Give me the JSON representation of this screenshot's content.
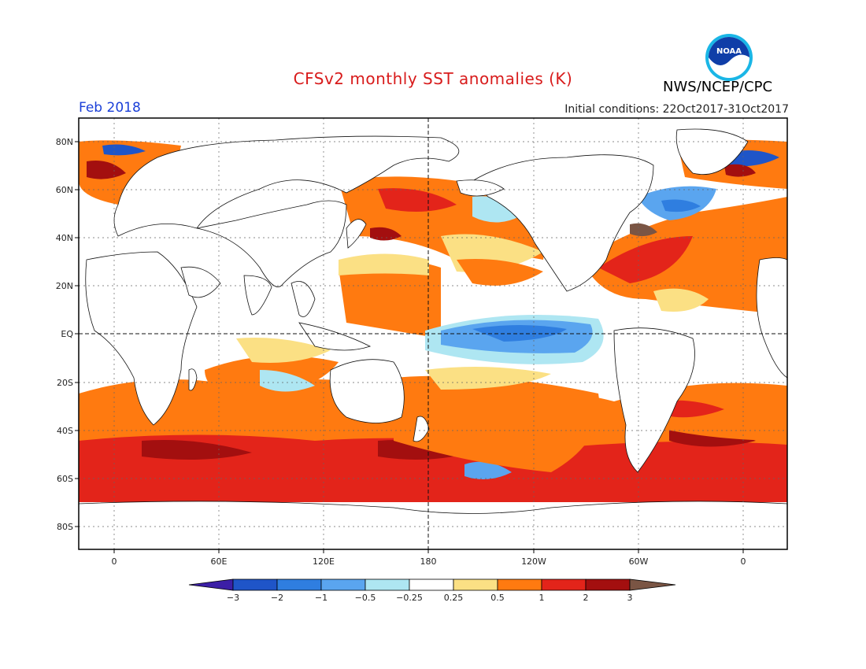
{
  "header": {
    "title": "CFSv2 monthly SST anomalies (K)",
    "organization": "NWS/NCEP/CPC",
    "logo_text": "NOAA",
    "month": "Feb 2018",
    "initial_conditions": "Initial conditions: 22Oct2017-31Oct2017"
  },
  "axes": {
    "lat_labels": [
      "80N",
      "60N",
      "40N",
      "20N",
      "EQ",
      "20S",
      "40S",
      "60S",
      "80S"
    ],
    "lon_labels": [
      "0",
      "60E",
      "120E",
      "180",
      "120W",
      "60W",
      "0"
    ]
  },
  "colorbar": {
    "levels": [
      "-3",
      "-2",
      "-1",
      "-0.5",
      "-0.25",
      "0.25",
      "0.5",
      "1",
      "2",
      "3"
    ],
    "colors": [
      "#3c1fa6",
      "#1f55c8",
      "#2f7ee0",
      "#5aa5ef",
      "#aee6f2",
      "#ffffff",
      "#fbe084",
      "#ff7a10",
      "#e3241a",
      "#a30f0f",
      "#7a5544"
    ]
  },
  "palette": {
    "neg3": "#1f55c8",
    "neg2": "#2f7ee0",
    "neg1": "#5aa5ef",
    "neg05": "#aee6f2",
    "pos025": "#fbe084",
    "pos05": "#ff7a10",
    "pos1": "#e3241a",
    "pos2": "#a30f0f",
    "pos3": "#7a5544"
  }
}
